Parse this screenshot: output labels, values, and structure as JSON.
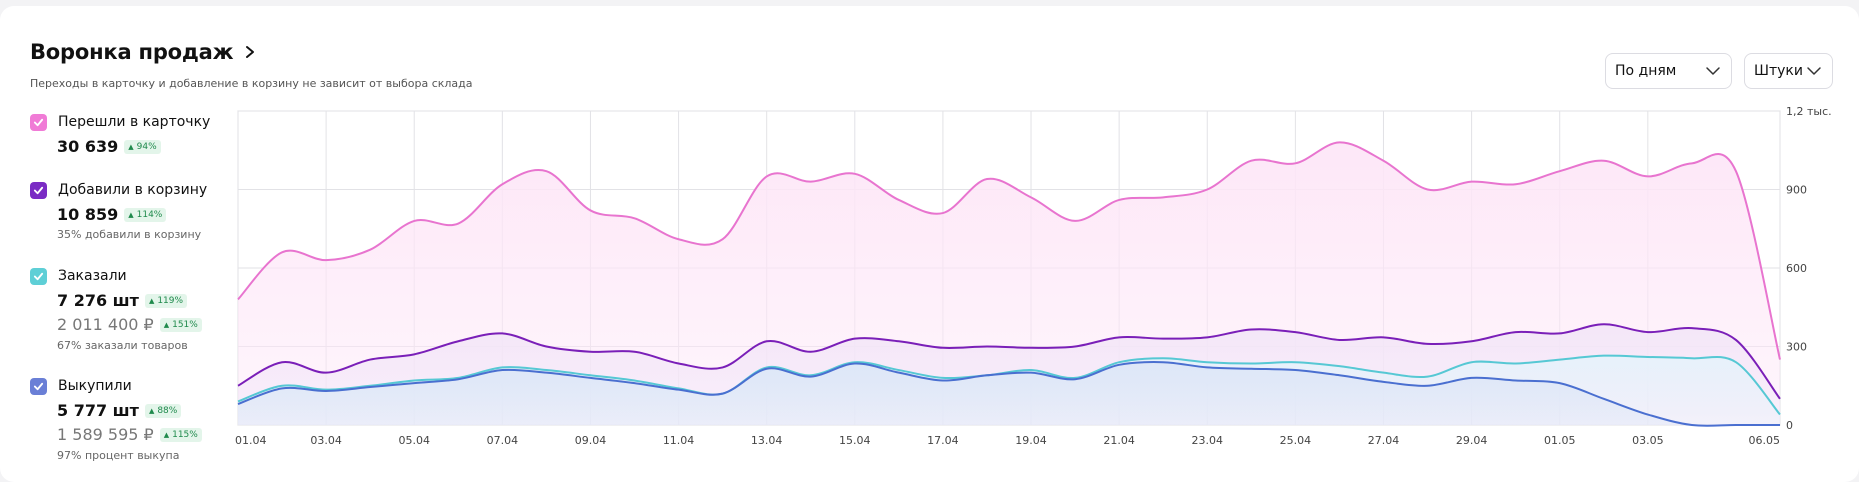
{
  "header": {
    "title": "Воронка продаж",
    "subtitle": "Переходы в карточку и добавление в корзину не зависит от выбора склада"
  },
  "controls": {
    "period": "По дням",
    "unit": "Штуки"
  },
  "legend": [
    {
      "label": "Перешли в карточку",
      "value": "30 639",
      "badge": "94%",
      "color": "#f07bd6"
    },
    {
      "label": "Добавили в корзину",
      "value": "10 859",
      "badge": "114%",
      "note": "35% добавили в корзину",
      "color": "#7a2bc4"
    },
    {
      "label": "Заказали",
      "value": "7 276 шт",
      "badge": "119%",
      "value2": "2 011 400 ₽",
      "badge2": "151%",
      "note": "67% заказали товаров",
      "color": "#5ecfd6"
    },
    {
      "label": "Выкупили",
      "value": "5 777 шт",
      "badge": "88%",
      "value2": "1 589 595 ₽",
      "badge2": "115%",
      "note": "97% процент выкупа",
      "color": "#6a7fd6"
    }
  ],
  "chart_data": {
    "type": "area",
    "x": [
      "01.04",
      "02.04",
      "03.04",
      "04.04",
      "05.04",
      "06.04",
      "07.04",
      "08.04",
      "09.04",
      "10.04",
      "11.04",
      "12.04",
      "13.04",
      "14.04",
      "15.04",
      "16.04",
      "17.04",
      "18.04",
      "19.04",
      "20.04",
      "21.04",
      "22.04",
      "23.04",
      "24.04",
      "25.04",
      "26.04",
      "27.04",
      "28.04",
      "29.04",
      "30.04",
      "01.05",
      "02.05",
      "03.05",
      "04.05",
      "05.05",
      "06.05"
    ],
    "x_tick_labels": [
      "01.04",
      "03.04",
      "05.04",
      "07.04",
      "09.04",
      "11.04",
      "13.04",
      "15.04",
      "17.04",
      "19.04",
      "21.04",
      "23.04",
      "25.04",
      "27.04",
      "29.04",
      "01.05",
      "03.05",
      "06.05"
    ],
    "y_tick_labels": [
      "0",
      "300",
      "600",
      "900",
      "1,2 тыс."
    ],
    "ylim": [
      0,
      1200
    ],
    "grid": true,
    "series": [
      {
        "name": "Перешли в карточку",
        "color": "#e874cf",
        "fill": "#fde6f7",
        "values": [
          480,
          660,
          630,
          670,
          780,
          770,
          920,
          970,
          820,
          790,
          710,
          710,
          950,
          930,
          960,
          860,
          810,
          940,
          870,
          780,
          860,
          870,
          900,
          1010,
          1000,
          1080,
          1010,
          900,
          930,
          920,
          970,
          1010,
          950,
          1000,
          970,
          250
        ]
      },
      {
        "name": "Добавили в корзину",
        "color": "#7a1fb8",
        "fill": "#f3e6f8",
        "values": [
          150,
          240,
          200,
          250,
          270,
          320,
          350,
          300,
          280,
          280,
          235,
          220,
          320,
          280,
          330,
          320,
          295,
          300,
          295,
          300,
          335,
          330,
          335,
          365,
          355,
          325,
          335,
          310,
          320,
          355,
          350,
          385,
          355,
          370,
          325,
          100
        ]
      },
      {
        "name": "Заказали",
        "color": "#56c8d4",
        "fill": "#e6f2fb",
        "values": [
          90,
          150,
          135,
          150,
          170,
          180,
          220,
          210,
          190,
          170,
          140,
          120,
          220,
          190,
          240,
          210,
          180,
          190,
          210,
          180,
          240,
          255,
          240,
          235,
          240,
          225,
          200,
          185,
          240,
          235,
          250,
          265,
          260,
          255,
          240,
          40
        ]
      },
      {
        "name": "Выкупили",
        "color": "#4a6fd0",
        "fill": "#dde6f7",
        "values": [
          80,
          140,
          130,
          145,
          160,
          175,
          210,
          200,
          180,
          160,
          135,
          120,
          215,
          185,
          235,
          200,
          170,
          190,
          200,
          175,
          230,
          240,
          220,
          215,
          210,
          190,
          165,
          150,
          180,
          170,
          160,
          100,
          40,
          0,
          0,
          0
        ]
      }
    ]
  }
}
